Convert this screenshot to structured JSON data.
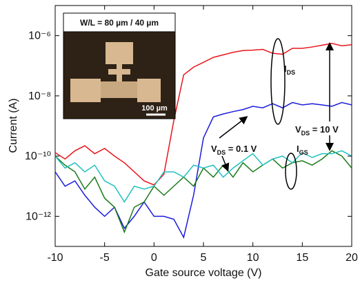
{
  "chart_data": {
    "type": "line",
    "yscale": "log",
    "xlabel": "Gate source voltage (V)",
    "ylabel": "Current (A)",
    "xlim": [
      -10,
      20
    ],
    "xticks": [
      -10,
      -5,
      0,
      5,
      10,
      15,
      20
    ],
    "ylim": [
      1e-13,
      1e-05
    ],
    "yticks": [
      {
        "value": 1e-12,
        "label": "10⁻¹²"
      },
      {
        "value": 1e-10,
        "label": "10⁻¹⁰"
      },
      {
        "value": 1e-08,
        "label": "10⁻⁸"
      },
      {
        "value": 1e-06,
        "label": "10⁻⁶"
      }
    ],
    "x": [
      -10,
      -9,
      -8,
      -7,
      -6,
      -5,
      -4,
      -3,
      -2,
      -1,
      0,
      1,
      2,
      3,
      4,
      5,
      6,
      7,
      8,
      9,
      10,
      11,
      12,
      13,
      14,
      15,
      16,
      17,
      18,
      19,
      20
    ],
    "series": [
      {
        "color": "#e8141b",
        "values": [
          1.3e-10,
          8e-11,
          1.5e-10,
          2.2e-10,
          1.2e-10,
          1.8e-10,
          1e-10,
          6e-11,
          3e-11,
          1.5e-11,
          1.1e-11,
          2.5e-11,
          1.5e-09,
          5e-08,
          9e-08,
          1.3e-07,
          1.9e-07,
          2.3e-07,
          2.8e-07,
          3.2e-07,
          3.3e-07,
          3.5e-07,
          2.6e-07,
          2.4e-07,
          3.8e-07,
          3.8e-07,
          4.2e-07,
          4.8e-07,
          5.5e-07,
          4.6e-07,
          5e-07
        ]
      },
      {
        "color": "#1a1adb",
        "values": [
          3e-11,
          1e-11,
          1.5e-11,
          5e-12,
          2e-12,
          1e-12,
          2e-12,
          4e-13,
          1e-12,
          3e-12,
          1e-12,
          1e-12,
          8e-13,
          2e-13,
          5e-12,
          4e-10,
          2e-09,
          2.5e-09,
          3e-09,
          3.5e-09,
          4.5e-09,
          4e-09,
          5.5e-09,
          4e-09,
          6e-09,
          5e-09,
          5.5e-09,
          5e-09,
          4.5e-09,
          6e-09,
          5e-09
        ]
      },
      {
        "color": "#1a7a1a",
        "values": [
          1e-10,
          5e-11,
          3e-11,
          8e-12,
          2e-11,
          4e-12,
          2e-12,
          3e-13,
          2e-12,
          3e-12,
          1e-11,
          5e-12,
          1e-11,
          2e-11,
          1e-11,
          4e-11,
          2e-11,
          5e-11,
          2e-11,
          6e-11,
          3e-11,
          5e-11,
          8e-11,
          4e-11,
          6e-11,
          7e-11,
          5e-11,
          8e-11,
          1.5e-10,
          1e-10,
          4e-11
        ]
      },
      {
        "color": "#22c0c0",
        "values": [
          1e-10,
          4e-11,
          6e-11,
          3e-11,
          5e-11,
          1.5e-11,
          1e-11,
          3e-12,
          1e-11,
          8e-12,
          1e-11,
          3e-11,
          3e-11,
          2e-11,
          5e-11,
          4e-11,
          5e-11,
          2e-11,
          4e-11,
          7e-11,
          1.2e-10,
          5e-11,
          8e-11,
          1e-10,
          6e-11,
          1.3e-10,
          9e-11,
          1.2e-10,
          1.2e-10,
          1.5e-10,
          1e-10
        ]
      }
    ],
    "inset": {
      "label": "W/L = 80 µm / 40 µm",
      "scale": "100 µm"
    },
    "annotations": [
      {
        "text": "I",
        "sub": "DS"
      },
      {
        "text": "V",
        "sub": "DS",
        "rest": " = 10 V"
      },
      {
        "text": "V",
        "sub": "DS",
        "rest": " = 0.1 V"
      },
      {
        "text": "I",
        "sub": "GS"
      }
    ]
  }
}
